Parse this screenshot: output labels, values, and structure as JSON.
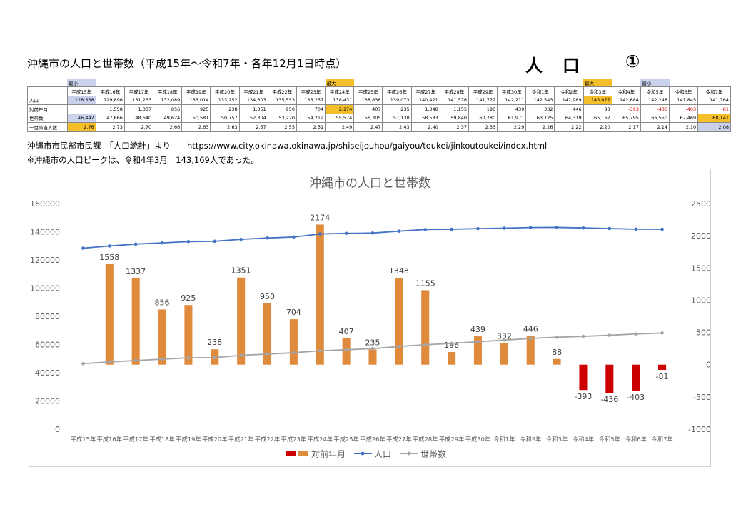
{
  "title": "沖縄市の人口と世帯数（平成15年～令和7年・各年12月1日時点）",
  "heading": "人　口",
  "badge": "①",
  "table": {
    "row_labels": [
      "人口",
      "対前年月",
      "世帯数",
      "一世帯当人数"
    ],
    "years": [
      "平成15年",
      "平成16年",
      "平成17年",
      "平成18年",
      "平成19年",
      "平成20年",
      "平成21年",
      "平成22年",
      "平成23年",
      "平成24年",
      "平成25年",
      "平成26年",
      "平成27年",
      "平成28年",
      "平成29年",
      "平成30年",
      "令和1年",
      "令和2年",
      "令和3年",
      "令和4年",
      "令和5年",
      "令和6年",
      "令和7年"
    ],
    "top_marks": [
      "最小",
      "",
      "",
      "",
      "",
      "",
      "",
      "",
      "",
      "最大",
      "",
      "",
      "",
      "",
      "",
      "",
      "",
      "",
      "最大",
      "",
      "最小",
      "",
      ""
    ],
    "top_mark_colors": [
      "#c9d2ea",
      "",
      "",
      "",
      "",
      "",
      "",
      "",
      "",
      "#f5bf2a",
      "",
      "",
      "",
      "",
      "",
      "",
      "",
      "",
      "#f5bf2a",
      "",
      "#c9d2ea",
      "",
      ""
    ],
    "population": [
      "128,338",
      "129,896",
      "131,233",
      "132,089",
      "133,014",
      "133,252",
      "134,603",
      "135,553",
      "136,257",
      "138,431",
      "138,838",
      "139,073",
      "140,421",
      "141,576",
      "141,772",
      "142,211",
      "142,543",
      "142,989",
      "143,077",
      "142,684",
      "142,248",
      "141,845",
      "141,764"
    ],
    "change": [
      "",
      "1,558",
      "1,337",
      "856",
      "925",
      "238",
      "1,351",
      "950",
      "704",
      "2,174",
      "407",
      "235",
      "1,348",
      "1,155",
      "196",
      "439",
      "332",
      "446",
      "88",
      "-393",
      "-436",
      "-403",
      "-81"
    ],
    "households": [
      "46,442",
      "47,666",
      "48,640",
      "49,624",
      "50,581",
      "50,757",
      "52,304",
      "53,220",
      "54,219",
      "55,574",
      "56,305",
      "57,130",
      "58,583",
      "59,840",
      "60,780",
      "61,971",
      "63,125",
      "64,319",
      "65,167",
      "65,795",
      "66,550",
      "67,469",
      "68,141"
    ],
    "per_household": [
      "2.76",
      "2.73",
      "2.70",
      "2.66",
      "2.63",
      "2.63",
      "2.57",
      "2.55",
      "2.51",
      "2.49",
      "2.47",
      "2.43",
      "2.40",
      "2.37",
      "2.33",
      "2.29",
      "2.26",
      "2.22",
      "2.20",
      "2.17",
      "2.14",
      "2.10",
      "2.08"
    ]
  },
  "source": "沖縄市市民部市民課　「人口統計」より　　https://www.city.okinawa.okinawa.jp/shiseijouhou/gaiyou/toukei/jinkoutoukei/index.html",
  "note": "※沖縄市の人口ピークは、令和4年3月　143,169人であった。",
  "colors": {
    "bar_pos": "#e08a3c",
    "bar_neg": "#cc0000",
    "line_pop": "#4472c4",
    "line_hh": "#a5a5a5",
    "hl_max": "#f5bf2a",
    "hl_min": "#c9d2ea"
  },
  "chart_data": {
    "type": "bar",
    "title": "沖縄市の人口と世帯数",
    "categories": [
      "平成15年",
      "平成16年",
      "平成17年",
      "平成18年",
      "平成19年",
      "平成20年",
      "平成21年",
      "平成22年",
      "平成23年",
      "平成24年",
      "平成25年",
      "平成26年",
      "平成27年",
      "平成28年",
      "平成29年",
      "平成30年",
      "令和1年",
      "令和2年",
      "令和3年",
      "令和4年",
      "令和5年",
      "令和6年",
      "令和7年"
    ],
    "series": [
      {
        "name": "対前年月",
        "type": "bar",
        "axis": "right",
        "values": [
          null,
          1558,
          1337,
          856,
          925,
          238,
          1351,
          950,
          704,
          2174,
          407,
          235,
          1348,
          1155,
          196,
          439,
          332,
          446,
          88,
          -393,
          -436,
          -403,
          -81
        ]
      },
      {
        "name": "人口",
        "type": "line",
        "axis": "left",
        "values": [
          128338,
          129896,
          131233,
          132089,
          133014,
          133252,
          134603,
          135553,
          136257,
          138431,
          138838,
          139073,
          140421,
          141576,
          141772,
          142211,
          142543,
          142989,
          143077,
          142684,
          142248,
          141845,
          141764
        ]
      },
      {
        "name": "世帯数",
        "type": "line",
        "axis": "left",
        "values": [
          46442,
          47666,
          48640,
          49624,
          50581,
          50757,
          52304,
          53220,
          54219,
          55574,
          56305,
          57130,
          58583,
          59840,
          60780,
          61971,
          63125,
          64319,
          65167,
          65795,
          66550,
          67469,
          68141
        ]
      }
    ],
    "left_ylim": [
      0,
      160000
    ],
    "left_ticks": [
      "0",
      "20000",
      "40000",
      "60000",
      "80000",
      "100000",
      "120000",
      "140000",
      "160000"
    ],
    "right_ylim": [
      -1000,
      2500
    ],
    "right_ticks": [
      "-1000",
      "-500",
      "0",
      "500",
      "1000",
      "1500",
      "2000",
      "2500"
    ],
    "legend": [
      "対前年月",
      "人口",
      "世帯数"
    ],
    "legend_position": "bottom",
    "grid": false
  }
}
